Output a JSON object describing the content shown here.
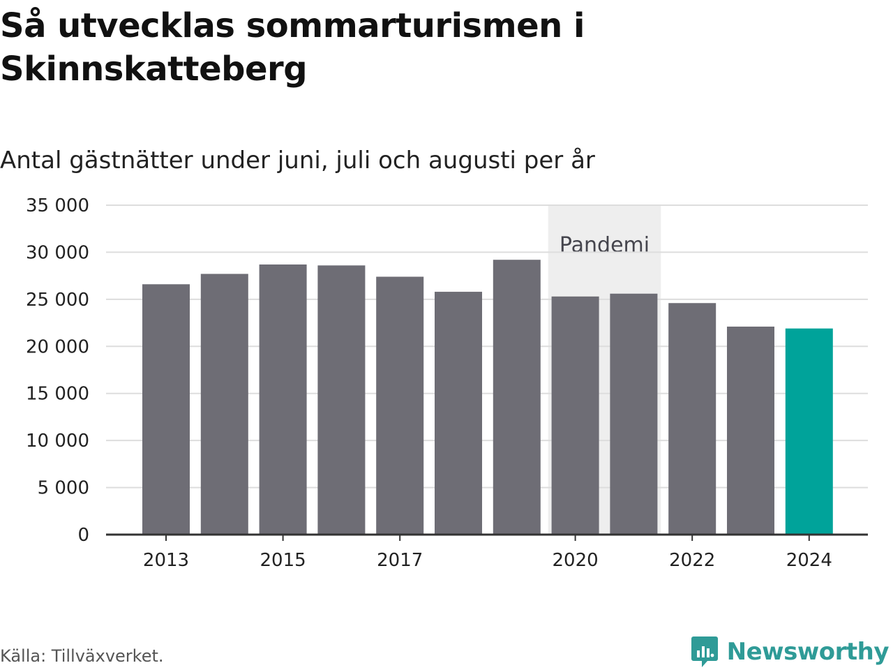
{
  "title": "Så utvecklas sommarturismen i Skinnskatteberg",
  "subtitle": "Antal gästnätter under juni, juli och augusti per år",
  "source": "Källa: Tillväxverket.",
  "brand": {
    "name": "Newsworthy",
    "icon": "newsworthy-logo-icon",
    "color": "#2f9b97"
  },
  "chart_data": {
    "type": "bar",
    "categories": [
      "2013",
      "2014",
      "2015",
      "2016",
      "2017",
      "2018",
      "2019",
      "2020",
      "2021",
      "2022",
      "2023",
      "2024"
    ],
    "values": [
      26600,
      27700,
      28700,
      28600,
      27400,
      25800,
      29200,
      25300,
      25600,
      24600,
      22100,
      21900
    ],
    "x_tick_labels": [
      "2013",
      "2015",
      "2017",
      "2020",
      "2022",
      "2024"
    ],
    "y_ticks": [
      0,
      5000,
      10000,
      15000,
      20000,
      25000,
      30000,
      35000
    ],
    "y_tick_labels": [
      "0",
      "5 000",
      "10 000",
      "15 000",
      "20 000",
      "25 000",
      "30 000",
      "35 000"
    ],
    "ylim": [
      0,
      35000
    ],
    "grid": true,
    "bar_color": "#6e6d75",
    "highlight_category": "2024",
    "highlight_color": "#00a39a",
    "annotation": {
      "label": "Pandemi",
      "from": "2020",
      "to": "2021",
      "color": "#eeeeee"
    }
  }
}
